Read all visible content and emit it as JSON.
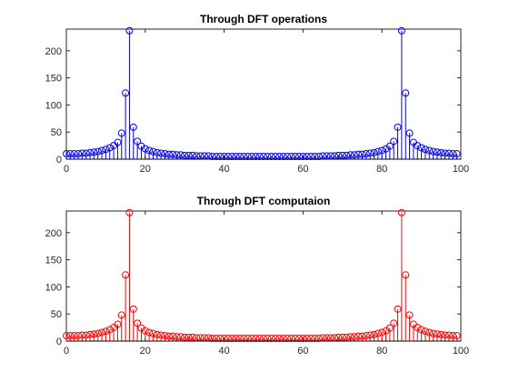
{
  "chart_data": [
    {
      "type": "stem",
      "title": "Through DFT operations",
      "xlim": [
        0,
        100
      ],
      "ylim": [
        0,
        240
      ],
      "xticks": [
        0,
        20,
        40,
        60,
        80,
        100
      ],
      "yticks": [
        0,
        50,
        100,
        150,
        200
      ],
      "grid": false,
      "color": "#0000ff",
      "series": [
        {
          "x": [
            0,
            1,
            2,
            3,
            4,
            5,
            6,
            7,
            8,
            9,
            10,
            11,
            12,
            13,
            14,
            15,
            16,
            17,
            18,
            19,
            20,
            21,
            22,
            23,
            24,
            25,
            26,
            27,
            28,
            29,
            30,
            31,
            32,
            33,
            34,
            35,
            36,
            37,
            38,
            39,
            40,
            41,
            42,
            43,
            44,
            45,
            46,
            47,
            48,
            49,
            50,
            51,
            52,
            53,
            54,
            55,
            56,
            57,
            58,
            59,
            60,
            61,
            62,
            63,
            64,
            65,
            66,
            67,
            68,
            69,
            70,
            71,
            72,
            73,
            74,
            75,
            76,
            77,
            78,
            79,
            80,
            81,
            82,
            83,
            84,
            85,
            86,
            87,
            88,
            89,
            90,
            91,
            92,
            93,
            94,
            95,
            96,
            97,
            98,
            99
          ],
          "y": [
            10,
            10,
            10,
            10,
            11,
            11,
            12,
            13,
            14,
            16,
            18,
            21,
            25,
            31,
            48,
            122,
            237,
            59,
            33,
            24,
            19,
            16,
            14,
            12,
            11,
            10,
            9,
            9,
            8,
            8,
            7,
            7,
            7,
            6,
            6,
            6,
            6,
            5,
            5,
            5,
            5,
            5,
            5,
            5,
            5,
            5,
            5,
            5,
            5,
            5,
            5,
            5,
            5,
            5,
            5,
            5,
            5,
            5,
            5,
            5,
            5,
            5,
            5,
            5,
            5,
            6,
            6,
            6,
            6,
            7,
            7,
            7,
            8,
            8,
            9,
            9,
            10,
            11,
            12,
            14,
            16,
            19,
            24,
            33,
            59,
            237,
            122,
            48,
            31,
            25,
            21,
            18,
            16,
            14,
            13,
            12,
            11,
            11,
            10,
            10
          ]
        }
      ]
    },
    {
      "type": "stem",
      "title": "Through DFT computaion",
      "xlim": [
        0,
        100
      ],
      "ylim": [
        0,
        240
      ],
      "xticks": [
        0,
        20,
        40,
        60,
        80,
        100
      ],
      "yticks": [
        0,
        50,
        100,
        150,
        200
      ],
      "grid": false,
      "color": "#ff0000",
      "series": [
        {
          "x": [
            0,
            1,
            2,
            3,
            4,
            5,
            6,
            7,
            8,
            9,
            10,
            11,
            12,
            13,
            14,
            15,
            16,
            17,
            18,
            19,
            20,
            21,
            22,
            23,
            24,
            25,
            26,
            27,
            28,
            29,
            30,
            31,
            32,
            33,
            34,
            35,
            36,
            37,
            38,
            39,
            40,
            41,
            42,
            43,
            44,
            45,
            46,
            47,
            48,
            49,
            50,
            51,
            52,
            53,
            54,
            55,
            56,
            57,
            58,
            59,
            60,
            61,
            62,
            63,
            64,
            65,
            66,
            67,
            68,
            69,
            70,
            71,
            72,
            73,
            74,
            75,
            76,
            77,
            78,
            79,
            80,
            81,
            82,
            83,
            84,
            85,
            86,
            87,
            88,
            89,
            90,
            91,
            92,
            93,
            94,
            95,
            96,
            97,
            98,
            99
          ],
          "y": [
            10,
            10,
            10,
            10,
            11,
            11,
            12,
            13,
            14,
            16,
            18,
            21,
            25,
            31,
            48,
            122,
            237,
            59,
            33,
            24,
            19,
            16,
            14,
            12,
            11,
            10,
            9,
            9,
            8,
            8,
            7,
            7,
            7,
            6,
            6,
            6,
            6,
            5,
            5,
            5,
            5,
            5,
            5,
            5,
            5,
            5,
            5,
            5,
            5,
            5,
            5,
            5,
            5,
            5,
            5,
            5,
            5,
            5,
            5,
            5,
            5,
            5,
            5,
            5,
            5,
            6,
            6,
            6,
            6,
            7,
            7,
            7,
            8,
            8,
            9,
            9,
            10,
            11,
            12,
            14,
            16,
            19,
            24,
            33,
            59,
            237,
            122,
            48,
            31,
            25,
            21,
            18,
            16,
            14,
            13,
            12,
            11,
            11,
            10,
            10
          ]
        }
      ]
    }
  ]
}
